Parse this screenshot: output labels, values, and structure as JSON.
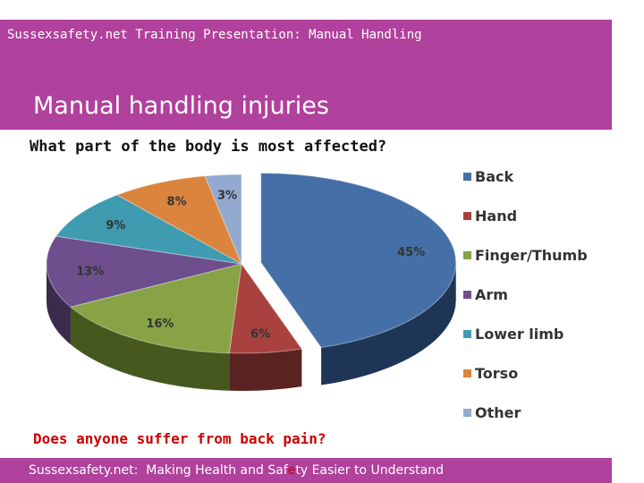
{
  "header": {
    "caption": "Sussexsafety.net Training Presentation: Manual Handling",
    "title": "Manual handling injuries"
  },
  "question": "What part of the body is most affected?",
  "bottom_question": "Does anyone suffer from back pain?",
  "footer": {
    "text_before": "Sussexsafety.net:  Making Health and Saf",
    "highlight": "e",
    "text_after": "ty Easier to Understand",
    "highlight_color": "#cc0000"
  },
  "colors": {
    "brand": "#b0419c"
  },
  "chart_data": {
    "type": "pie",
    "title": "",
    "style": "3d-exploded",
    "legend_position": "right",
    "categories": [
      "Back",
      "Hand",
      "Finger/Thumb",
      "Arm",
      "Lower limb",
      "Torso",
      "Other"
    ],
    "values": [
      45,
      6,
      16,
      13,
      9,
      8,
      3
    ],
    "labels": [
      "45%",
      "6%",
      "16%",
      "13%",
      "9%",
      "8%",
      "3%"
    ],
    "colors": [
      "#4470a7",
      "#a9423f",
      "#87a346",
      "#6e4e8c",
      "#3f9bb0",
      "#db843d",
      "#93a9cf"
    ],
    "side_colors": [
      "#1e3555",
      "#5a2220",
      "#47581f",
      "#3a2a4b",
      "#1f5260",
      "#7c4a1f",
      "#536380"
    ]
  }
}
